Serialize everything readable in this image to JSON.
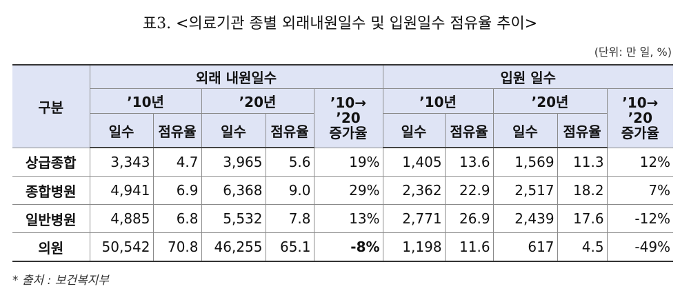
{
  "title": "표3. <의료기관 종별 외래내원일수 및 입원일수 점유율 추이>",
  "unit": "(단위: 만 일, %)",
  "table": {
    "header": {
      "corner": "구분",
      "groups": [
        "외래 내원일수",
        "입원 일수"
      ],
      "years": [
        "’10년",
        "’20년",
        "’10년",
        "’20년"
      ],
      "growth": [
        [
          "’10→",
          "’20",
          "증가율"
        ],
        [
          "’10→",
          "’20",
          "증가율"
        ]
      ],
      "sub": [
        "일수",
        "점유율",
        "일수",
        "점유율",
        "일수",
        "점유율",
        "일수",
        "점유율"
      ]
    },
    "rows": [
      {
        "label": "상급종합",
        "cells": [
          "3,343",
          "4.7",
          "3,965",
          "5.6",
          "19%",
          "1,405",
          "13.6",
          "1,569",
          "11.3",
          "12%"
        ]
      },
      {
        "label": "종합병원",
        "cells": [
          "4,941",
          "6.9",
          "6,368",
          "9.0",
          "29%",
          "2,362",
          "22.9",
          "2,517",
          "18.2",
          "7%"
        ]
      },
      {
        "label": "일반병원",
        "cells": [
          "4,885",
          "6.8",
          "5,532",
          "7.8",
          "13%",
          "2,771",
          "26.9",
          "2,439",
          "17.6",
          "-12%"
        ]
      },
      {
        "label": "의원",
        "cells": [
          "50,542",
          "70.8",
          "46,255",
          "65.1",
          "-8%",
          "1,198",
          "11.6",
          "617",
          "4.5",
          "-49%"
        ]
      }
    ]
  },
  "footnote": "* 출처 : 보건복지부"
}
